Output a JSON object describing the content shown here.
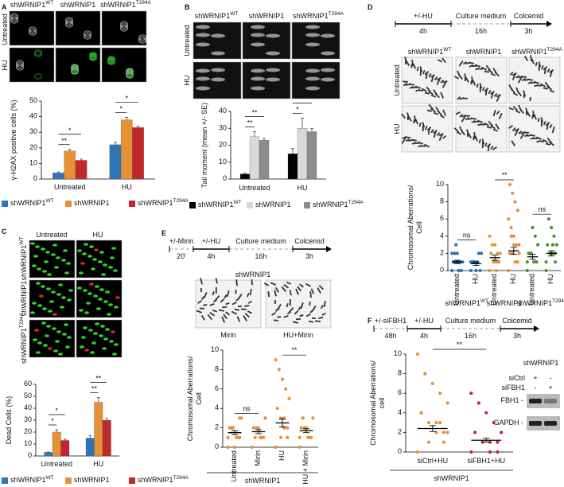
{
  "panels": {
    "a": {
      "label": "A",
      "columns": [
        {
          "text": "shWRNIP1",
          "sup": "WT"
        },
        {
          "text": "shWRNIP1"
        },
        {
          "text": "shWRNIP1",
          "sup": "T294A"
        }
      ],
      "rows": [
        "Untreated",
        "HU"
      ]
    },
    "b": {
      "label": "B",
      "columns": [
        {
          "text": "shWRNIP1",
          "sup": "WT"
        },
        {
          "text": "shWRNIP1"
        },
        {
          "text": "shWRNIP1",
          "sup": "T294A"
        }
      ],
      "rows": [
        "Untreated",
        "HU"
      ]
    },
    "c": {
      "label": "C",
      "columns": [
        "Untreated",
        "HU"
      ],
      "rows": [
        {
          "text": "shWRNIP1",
          "sup": "WT"
        },
        {
          "text": "shWRNIP1"
        },
        {
          "text": "shWRNIP1",
          "sup": "T294A"
        }
      ]
    },
    "d": {
      "label": "D",
      "timeline": [
        {
          "label": "+/-HU",
          "duration": "4h"
        },
        {
          "label": "Culture medium",
          "duration": "16h"
        },
        {
          "label": "Colcemid",
          "duration": "3h"
        }
      ],
      "columns": [
        {
          "text": "shWRNIP1",
          "sup": "WT"
        },
        {
          "text": "shWRNIP1"
        },
        {
          "text": "shWRNIP1",
          "sup": "T294A"
        }
      ],
      "rows": [
        "Untreated",
        "HU"
      ]
    },
    "e": {
      "label": "E",
      "timeline": [
        {
          "label": "+/-Mirin",
          "duration": "20'"
        },
        {
          "label": "+/-HU",
          "duration": "4h"
        },
        {
          "label": "Culture medium",
          "duration": "16h"
        },
        {
          "label": "Colcemid",
          "duration": "3h"
        }
      ],
      "image_title": "shWRNIP1",
      "captions": [
        "Mirin",
        "HU+Mirin"
      ]
    },
    "f": {
      "label": "F",
      "timeline": [
        {
          "label": "+/-siFBH1",
          "duration": "48h"
        },
        {
          "label": "+/-HU",
          "duration": "4h"
        },
        {
          "label": "Culture medium",
          "duration": "16h"
        },
        {
          "label": "Colcemid",
          "duration": "3h"
        }
      ],
      "blot": {
        "title": "shWRNIP1",
        "lanes": [
          "siCtrl",
          "siFBH1"
        ],
        "signs": [
          [
            "+",
            "-"
          ],
          [
            "-",
            "+"
          ]
        ],
        "bands": [
          "FBH1 -",
          "GAPDH -"
        ]
      }
    }
  },
  "chart_data": [
    {
      "type": "bar",
      "y_label": "γ-H2AX positive cells (%)",
      "categories": [
        "Untreated",
        "HU"
      ],
      "series": [
        {
          "name": "shWRNIP1",
          "name_sup": "WT",
          "color": "#2e75b6",
          "values": [
            4,
            22
          ],
          "errors": [
            0.5,
            1.5
          ]
        },
        {
          "name": "shWRNIP1",
          "color": "#e69138",
          "values": [
            18,
            38
          ],
          "errors": [
            1,
            1.5
          ]
        },
        {
          "name": "shWRNIP1",
          "name_sup": "T294A",
          "color": "#c0282d",
          "values": [
            12,
            33
          ],
          "errors": [
            0.8,
            1
          ]
        }
      ],
      "ylim": [
        0,
        50
      ],
      "yticks": [
        0,
        10,
        20,
        30,
        40,
        50
      ],
      "annotations": [
        "*",
        "**",
        "*",
        "*"
      ]
    },
    {
      "type": "bar",
      "y_label": "Tail moment (mean +/- SE)",
      "categories": [
        "Untreated",
        "HU"
      ],
      "series": [
        {
          "name": "shWRNIP1",
          "name_sup": "WT",
          "color": "#000000",
          "values": [
            3,
            15
          ],
          "errors": [
            0.5,
            3
          ]
        },
        {
          "name": "shWRNIP1",
          "color": "#d9d9d9",
          "values": [
            25,
            30
          ],
          "errors": [
            3,
            6
          ]
        },
        {
          "name": "shWRNIP1",
          "name_sup": "T294A",
          "color": "#8c8c8c",
          "values": [
            23,
            28
          ],
          "errors": [
            1,
            2
          ]
        }
      ],
      "ylim": [
        0,
        40
      ],
      "yticks": [
        0,
        10,
        20,
        30,
        40
      ],
      "annotations": [
        "**",
        "**",
        "*",
        "*"
      ]
    },
    {
      "type": "bar",
      "y_label": "Dead Cells (%)",
      "categories": [
        "Untreated",
        "HU"
      ],
      "series": [
        {
          "name": "shWRNIP1",
          "name_sup": "WT",
          "color": "#2e75b6",
          "values": [
            3,
            15
          ],
          "errors": [
            0.3,
            2
          ]
        },
        {
          "name": "shWRNIP1",
          "color": "#e69138",
          "values": [
            20,
            45
          ],
          "errors": [
            2,
            4
          ]
        },
        {
          "name": "shWRNIP1",
          "name_sup": "T294A",
          "color": "#c0282d",
          "values": [
            13,
            30
          ],
          "errors": [
            1,
            1.5
          ]
        }
      ],
      "ylim": [
        0,
        60
      ],
      "yticks": [
        0,
        10,
        20,
        30,
        40,
        50,
        60
      ],
      "annotations": [
        "*",
        "*",
        "**",
        "**"
      ]
    },
    {
      "type": "strip",
      "y_label": [
        "Chromosomal Aberrations/",
        "Cell"
      ],
      "categories": [
        "Untreated",
        "HU",
        "Untreated",
        "HU",
        "Untreated",
        "HU"
      ],
      "groups": [
        {
          "text": "shWRNIP1",
          "sup": "WT"
        },
        {
          "text": "shWRNIP1"
        },
        {
          "text": "shWRNIP1",
          "sup": "T294A"
        }
      ],
      "colors": [
        "#2e75b6",
        "#2e75b6",
        "#e69138",
        "#e69138",
        "#4e8f2f",
        "#4e8f2f"
      ],
      "points": [
        [
          0,
          0,
          0,
          1,
          1,
          1,
          1,
          2,
          2,
          2,
          0,
          1,
          3
        ],
        [
          0,
          0,
          1,
          1,
          1,
          2,
          2,
          0,
          1,
          1
        ],
        [
          0,
          1,
          1,
          1,
          2,
          2,
          2,
          3,
          3,
          4,
          1,
          0
        ],
        [
          0,
          1,
          1,
          2,
          2,
          3,
          3,
          4,
          5,
          6,
          7,
          8,
          9,
          10,
          2,
          1,
          3,
          4
        ],
        [
          0,
          1,
          1,
          2,
          2,
          3,
          4,
          5,
          2,
          1
        ],
        [
          0,
          1,
          2,
          2,
          3,
          3,
          4,
          5,
          6,
          1,
          2,
          3
        ]
      ],
      "means": [
        1.0,
        0.8,
        1.5,
        2.3,
        1.6,
        2.0
      ],
      "sem": [
        0.2,
        0.2,
        0.3,
        0.4,
        0.3,
        0.3
      ],
      "ylim": [
        0,
        10
      ],
      "yticks": [
        0,
        2,
        4,
        6,
        8,
        10
      ],
      "annotations": [
        "ns",
        "**",
        "ns"
      ]
    },
    {
      "type": "strip",
      "y_label": [
        "Chromosomal Aberrations/",
        "Cell"
      ],
      "categories": [
        "Untreated",
        "Mirin",
        "HU",
        "HU + Mirin"
      ],
      "group_label": "shWRNIP1",
      "colors": [
        "#e69138",
        "#e69138",
        "#e69138",
        "#e69138"
      ],
      "points": [
        [
          0,
          1,
          1,
          2,
          2,
          3,
          1,
          0,
          2,
          1,
          3
        ],
        [
          0,
          1,
          1,
          2,
          2,
          3,
          1,
          2,
          1
        ],
        [
          0,
          1,
          2,
          3,
          4,
          5,
          6,
          7,
          8,
          9,
          2,
          3,
          1
        ],
        [
          0,
          1,
          1,
          2,
          2,
          3,
          1,
          2,
          3,
          1
        ]
      ],
      "means": [
        1.5,
        1.6,
        2.5,
        1.7
      ],
      "sem": [
        0.2,
        0.2,
        0.4,
        0.2
      ],
      "ylim": [
        0,
        10
      ],
      "yticks": [
        0,
        2,
        4,
        6,
        8,
        10
      ],
      "annotations": [
        "ns",
        "**"
      ]
    },
    {
      "type": "strip",
      "y_label": [
        "Chromosomal Aberrations/",
        "cell"
      ],
      "categories": [
        "siCtrl+HU",
        "siFBH1+HU"
      ],
      "group_label": "shWRNIP1",
      "colors": [
        "#e69138",
        "#c0282d"
      ],
      "points": [
        [
          0,
          1,
          2,
          3,
          4,
          5,
          6,
          7,
          8,
          10,
          2,
          3,
          1,
          4,
          2,
          3
        ],
        [
          0,
          0,
          1,
          1,
          2,
          2,
          3,
          4,
          5,
          6,
          1,
          0
        ]
      ],
      "means": [
        2.4,
        1.2
      ],
      "sem": [
        0.3,
        0.2
      ],
      "ylim": [
        0,
        10
      ],
      "yticks": [
        0,
        2,
        4,
        6,
        8,
        10
      ],
      "annotations": [
        "**"
      ]
    }
  ]
}
